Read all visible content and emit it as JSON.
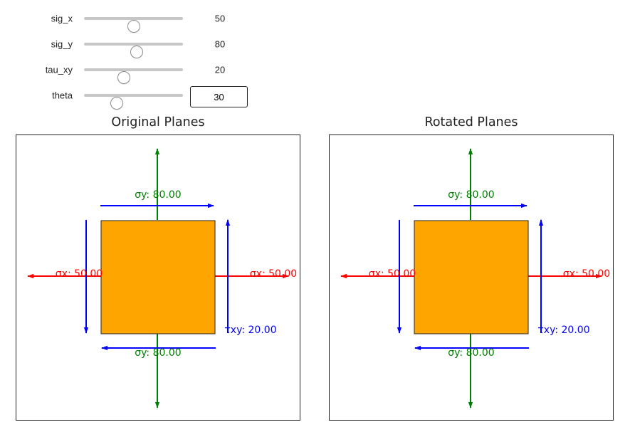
{
  "controls": {
    "sig_x": {
      "label": "sig_x",
      "value": 50,
      "min": 0,
      "max": 100
    },
    "sig_y": {
      "label": "sig_y",
      "value": 80,
      "min": 0,
      "max": 150
    },
    "tau_xy": {
      "label": "tau_xy",
      "value": 20,
      "min": 0,
      "max": 50
    },
    "theta": {
      "label": "theta",
      "value": "30",
      "min": 0,
      "max": 90
    }
  },
  "panels": [
    {
      "title": "Original Planes",
      "labels": {
        "sx_left": "σx: 50.00",
        "sx_right": "σx: 50.00",
        "sy_top": "σy: 80.00",
        "sy_bottom": "σy: 80.00",
        "txy": "τxy: 20.00"
      }
    },
    {
      "title": "Rotated Planes",
      "labels": {
        "sx_left": "σx: 50.00",
        "sx_right": "σx: 50.00",
        "sy_top": "σy: 80.00",
        "sy_bottom": "σy: 80.00",
        "txy": "τxy: 20.00"
      }
    }
  ],
  "colors": {
    "element_fill": "#ffa500",
    "normal_x": "#ff0000",
    "normal_y": "#008000",
    "shear": "#0000ff"
  }
}
